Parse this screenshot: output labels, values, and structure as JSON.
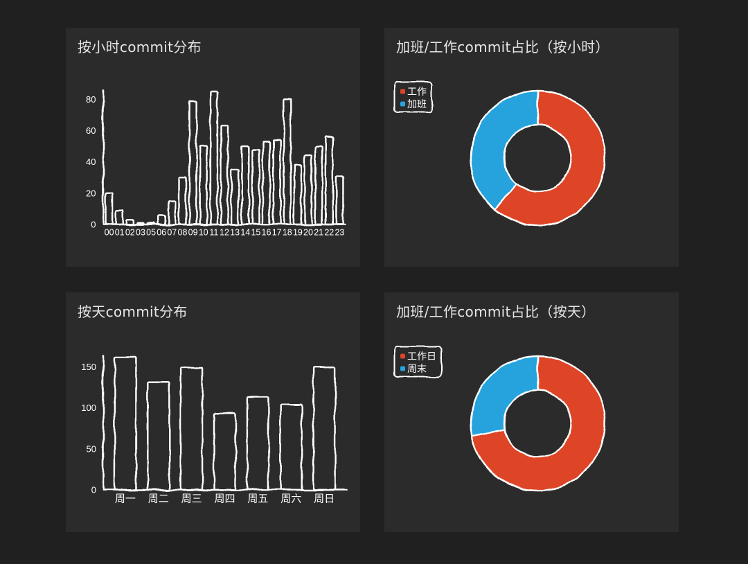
{
  "colors": {
    "page_background": "#202020",
    "panel_background": "#2b2b2b",
    "line": "#ffffff",
    "title_text": "#e6e6e6",
    "label_text": "#ffffff"
  },
  "chart_data": [
    {
      "type": "bar",
      "title": "按小时commit分布",
      "xlabel": "",
      "ylabel": "",
      "categories": [
        "00",
        "01",
        "02",
        "03",
        "05",
        "06",
        "07",
        "08",
        "09",
        "10",
        "11",
        "12",
        "13",
        "14",
        "15",
        "16",
        "17",
        "18",
        "19",
        "20",
        "21",
        "22",
        "23"
      ],
      "values": [
        20,
        9,
        3,
        1,
        1,
        6,
        15,
        30,
        79,
        50,
        85,
        63,
        35,
        50,
        48,
        53,
        54,
        80,
        38,
        44,
        50,
        56,
        31
      ],
      "yticks": [
        0,
        20,
        40,
        60,
        80
      ],
      "ylim": [
        0,
        85
      ],
      "grid": false
    },
    {
      "type": "pie",
      "donut": true,
      "title": "加班/工作commit占比（按小时）",
      "categories": [
        "工作",
        "加班"
      ],
      "values": [
        61,
        39
      ],
      "colors": [
        "#dd4528",
        "#28a3dd"
      ],
      "legend": "top-left"
    },
    {
      "type": "bar",
      "title": "按天commit分布",
      "xlabel": "",
      "ylabel": "",
      "categories": [
        "周一",
        "周二",
        "周三",
        "周四",
        "周五",
        "周六",
        "周日"
      ],
      "values": [
        162,
        131,
        149,
        93,
        113,
        104,
        150
      ],
      "yticks": [
        0,
        50,
        100,
        150
      ],
      "ylim": [
        0,
        162
      ],
      "grid": false
    },
    {
      "type": "pie",
      "donut": true,
      "title": "加班/工作commit占比（按天）",
      "categories": [
        "工作日",
        "周末"
      ],
      "values": [
        72,
        28
      ],
      "colors": [
        "#dd4528",
        "#28a3dd"
      ],
      "legend": "top-left"
    }
  ]
}
